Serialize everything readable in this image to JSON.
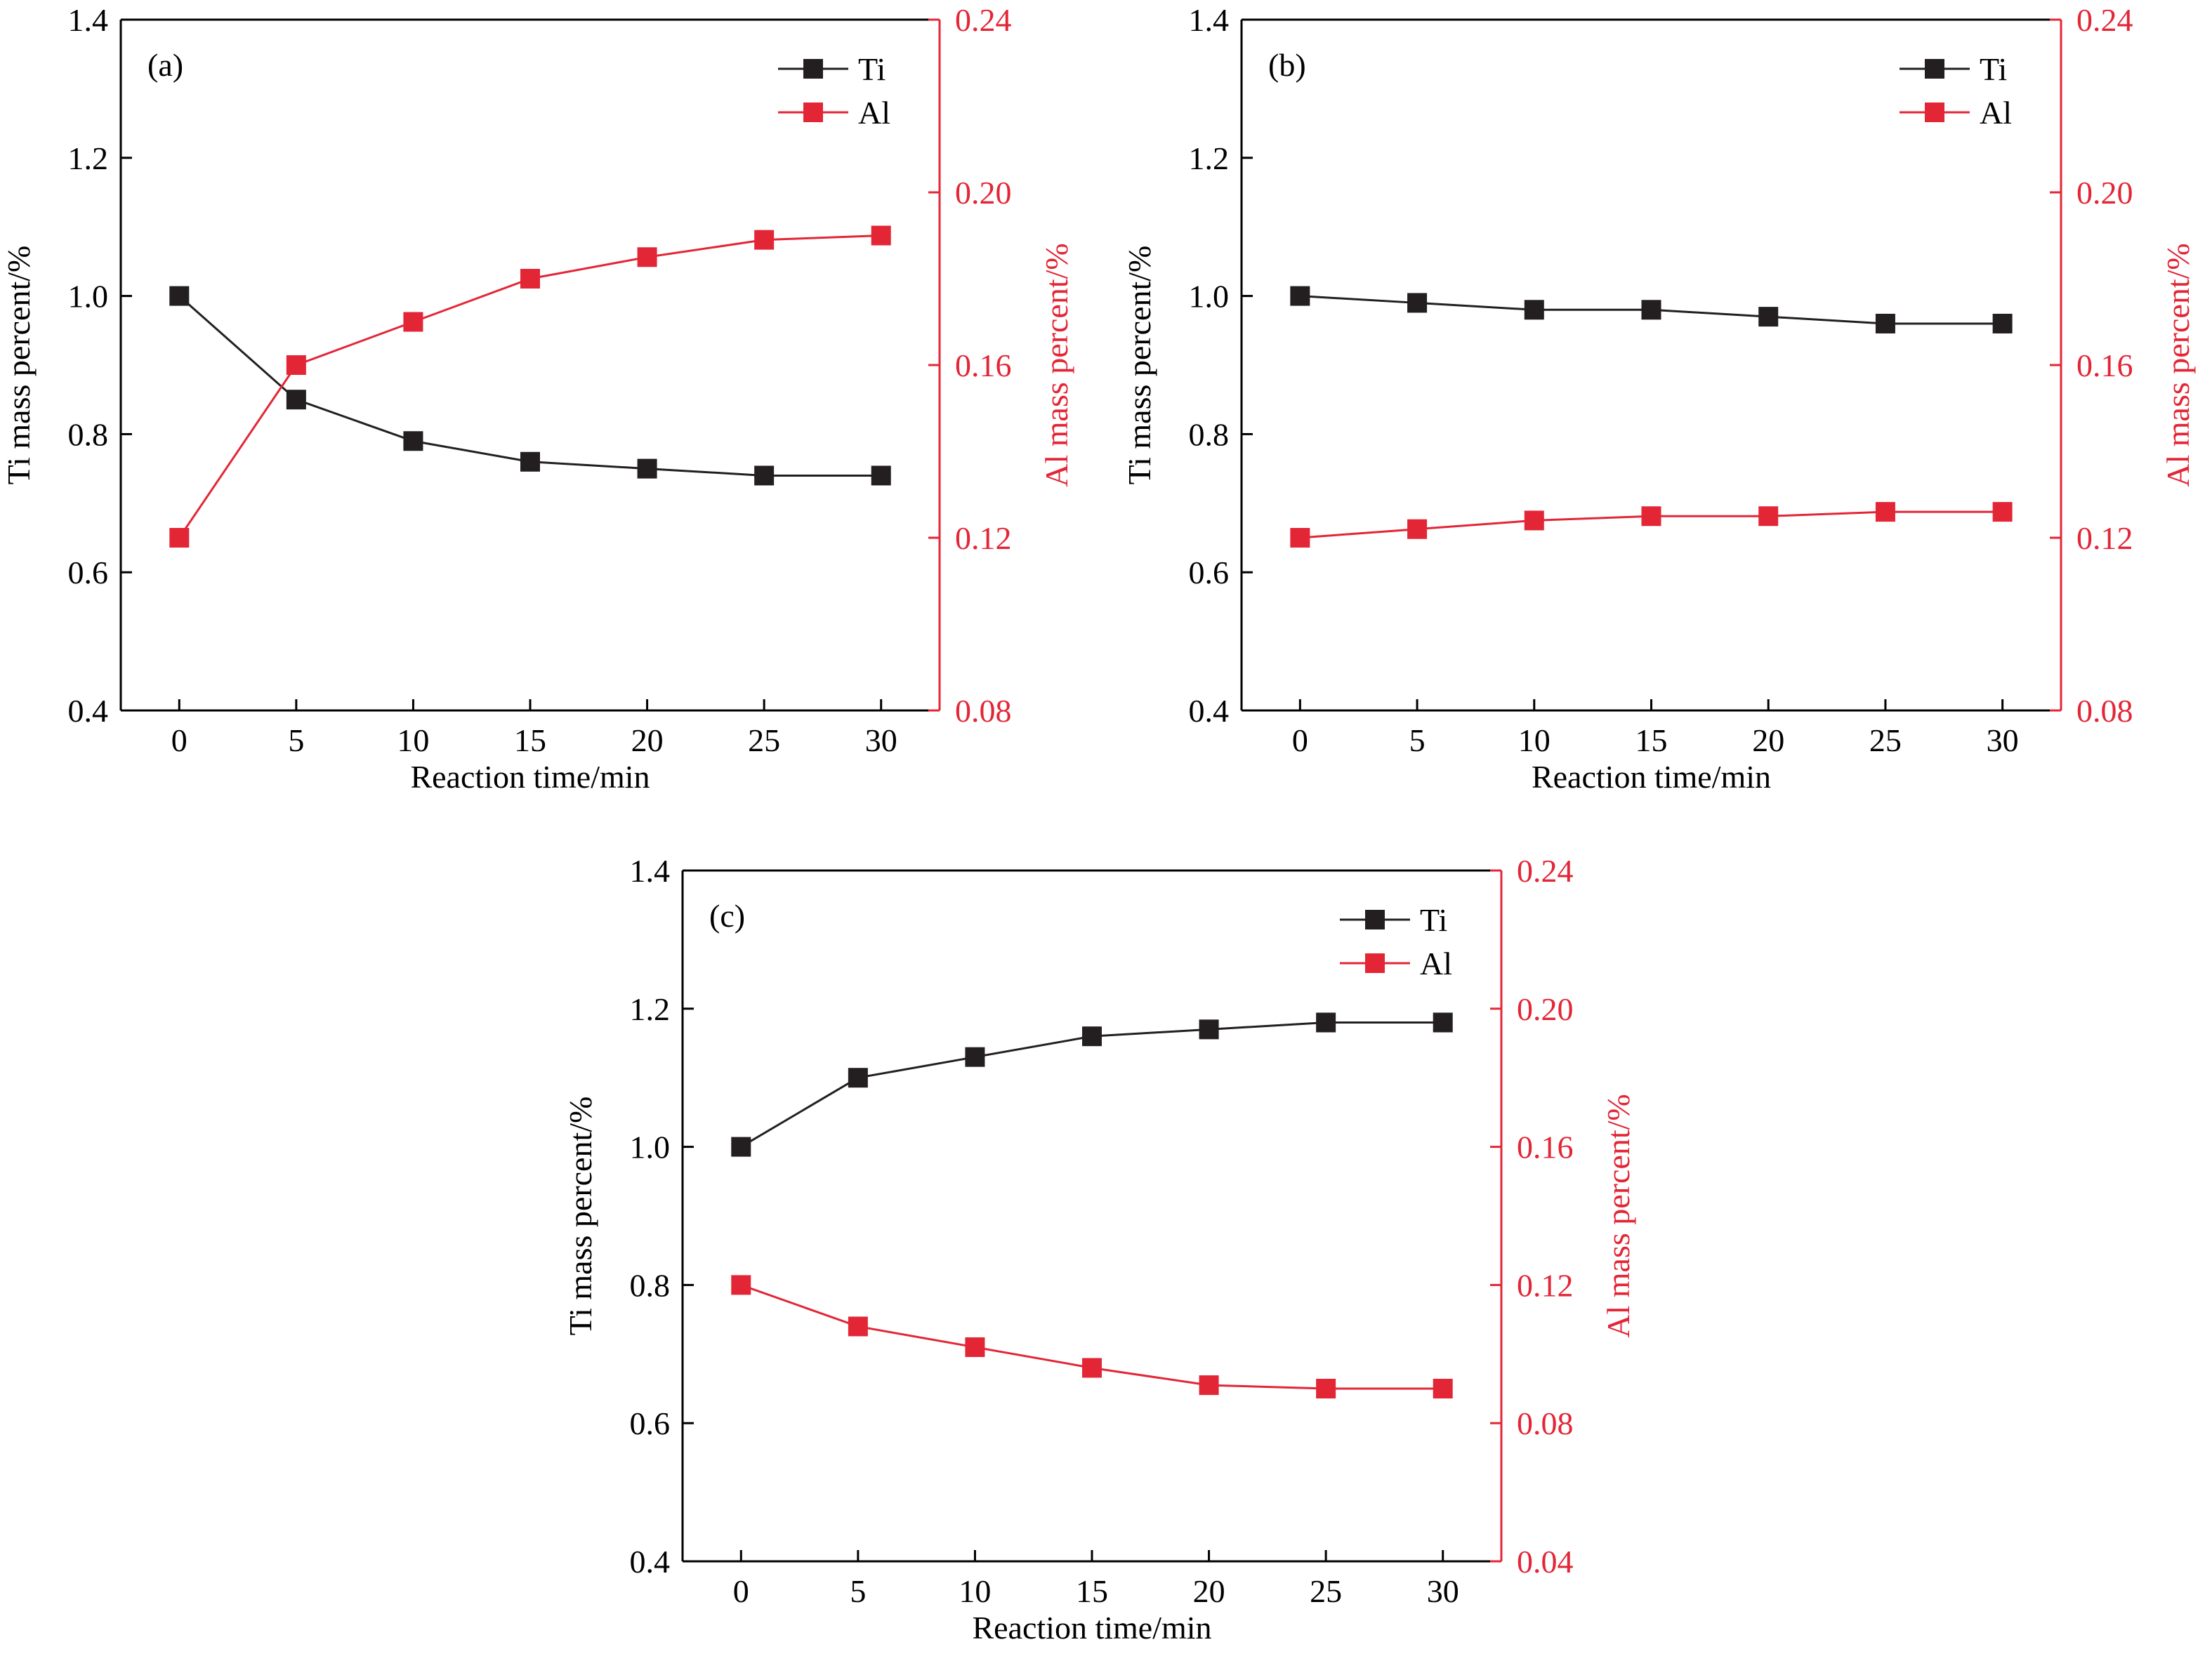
{
  "colors": {
    "ti": "#231f20",
    "al": "#e32636",
    "axis": "#000000"
  },
  "chart_data": [
    {
      "type": "line",
      "panel_label": "(a)",
      "xlabel": "Reaction time/min",
      "ylabel": "Ti mass percent/%",
      "y2label": "Al mass percent/%",
      "x": [
        0,
        5,
        10,
        15,
        20,
        25,
        30
      ],
      "xlim": [
        -2.5,
        32.5
      ],
      "xticks": [
        "0",
        "5",
        "10",
        "15",
        "20",
        "25",
        "30"
      ],
      "ylim": [
        0.4,
        1.4
      ],
      "yticks": [
        "0.4",
        "0.6",
        "0.8",
        "1.0",
        "1.2",
        "1.4"
      ],
      "y2lim": [
        0.08,
        0.24
      ],
      "y2ticks": [
        "0.08",
        "0.12",
        "0.16",
        "0.20",
        "0.24"
      ],
      "series": [
        {
          "name": "Ti",
          "axis": "left",
          "marker": "square",
          "values": [
            1.0,
            0.85,
            0.79,
            0.76,
            0.75,
            0.74,
            0.74
          ]
        },
        {
          "name": "Al",
          "axis": "right",
          "marker": "square",
          "values": [
            0.12,
            0.16,
            0.17,
            0.18,
            0.185,
            0.189,
            0.19
          ]
        }
      ],
      "legend": "top-right"
    },
    {
      "type": "line",
      "panel_label": "(b)",
      "xlabel": "Reaction time/min",
      "ylabel": "Ti mass percent/%",
      "y2label": "Al mass percent/%",
      "x": [
        0,
        5,
        10,
        15,
        20,
        25,
        30
      ],
      "xlim": [
        -2.5,
        32.5
      ],
      "xticks": [
        "0",
        "5",
        "10",
        "15",
        "20",
        "25",
        "30"
      ],
      "ylim": [
        0.4,
        1.4
      ],
      "yticks": [
        "0.4",
        "0.6",
        "0.8",
        "1.0",
        "1.2",
        "1.4"
      ],
      "y2lim": [
        0.08,
        0.24
      ],
      "y2ticks": [
        "0.08",
        "0.12",
        "0.16",
        "0.20",
        "0.24"
      ],
      "series": [
        {
          "name": "Ti",
          "axis": "left",
          "marker": "square",
          "values": [
            1.0,
            0.99,
            0.98,
            0.98,
            0.97,
            0.96,
            0.96
          ]
        },
        {
          "name": "Al",
          "axis": "right",
          "marker": "square",
          "values": [
            0.12,
            0.122,
            0.124,
            0.125,
            0.125,
            0.126,
            0.126
          ]
        }
      ],
      "legend": "top-right"
    },
    {
      "type": "line",
      "panel_label": "(c)",
      "xlabel": "Reaction time/min",
      "ylabel": "Ti mass percent/%",
      "y2label": "Al mass percent/%",
      "x": [
        0,
        5,
        10,
        15,
        20,
        25,
        30
      ],
      "xlim": [
        -2.5,
        32.5
      ],
      "xticks": [
        "0",
        "5",
        "10",
        "15",
        "20",
        "25",
        "30"
      ],
      "ylim": [
        0.4,
        1.4
      ],
      "yticks": [
        "0.4",
        "0.6",
        "0.8",
        "1.0",
        "1.2",
        "1.4"
      ],
      "y2lim": [
        0.04,
        0.24
      ],
      "y2ticks": [
        "0.04",
        "0.08",
        "0.12",
        "0.16",
        "0.20",
        "0.24"
      ],
      "series": [
        {
          "name": "Ti",
          "axis": "left",
          "marker": "square",
          "values": [
            1.0,
            1.1,
            1.13,
            1.16,
            1.17,
            1.18,
            1.18
          ]
        },
        {
          "name": "Al",
          "axis": "right",
          "marker": "square",
          "values": [
            0.12,
            0.108,
            0.102,
            0.096,
            0.091,
            0.09,
            0.09
          ]
        }
      ],
      "legend": "top-right"
    }
  ]
}
